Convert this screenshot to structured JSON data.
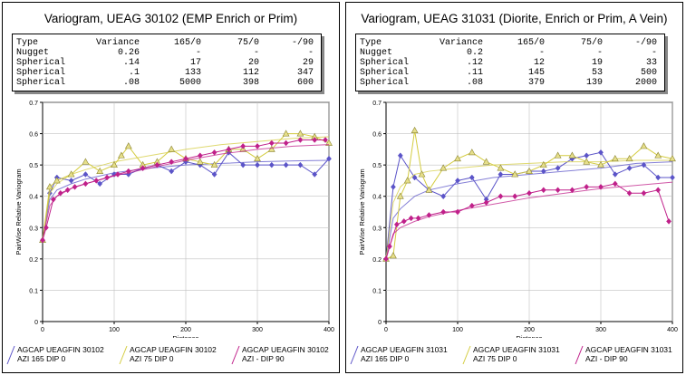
{
  "panels": [
    {
      "title": "Variogram, UEAG 30102 (EMP Enrich or Prim)",
      "table": {
        "header": [
          "Type",
          "Variance",
          "165/0",
          "75/0",
          "-/90"
        ],
        "rows": [
          [
            "Nugget",
            "0.26",
            "-",
            "-",
            "-"
          ],
          [
            "Spherical",
            ".14",
            "17",
            "20",
            "29"
          ],
          [
            "Spherical",
            ".1",
            "133",
            "112",
            "347"
          ],
          [
            "Spherical",
            ".08",
            "5000",
            "398",
            "600"
          ]
        ]
      },
      "legend": [
        {
          "line1": "AGCAP UEAGFIN 30102",
          "line2": "AZI 165 DIP 0",
          "color": "#5b54c8"
        },
        {
          "line1": "AGCAP UEAGFIN 30102",
          "line2": "AZI 75 DIP 0",
          "color": "#d4cc40"
        },
        {
          "line1": "AGCAP UEAGFIN 30102",
          "line2": "AZI - DIP 90",
          "color": "#c0208a"
        }
      ]
    },
    {
      "title": "Variogram, UEAG 31031 (Diorite, Enrich or Prim, A Vein)",
      "table": {
        "header": [
          "Type",
          "Variance",
          "165/0",
          "75/0",
          "-/90"
        ],
        "rows": [
          [
            "Nugget",
            "0.2",
            "-",
            "-",
            "-"
          ],
          [
            "Spherical",
            ".12",
            "12",
            "19",
            "33"
          ],
          [
            "Spherical",
            ".11",
            "145",
            "53",
            "500"
          ],
          [
            "Spherical",
            ".08",
            "379",
            "139",
            "2000"
          ]
        ]
      },
      "legend": [
        {
          "line1": "AGCAP UEAGFIN 31031",
          "line2": "AZI 165 DIP 0",
          "color": "#5b54c8"
        },
        {
          "line1": "AGCAP UEAGFIN 31031",
          "line2": "AZI 75 DIP 0",
          "color": "#d4cc40"
        },
        {
          "line1": "AGCAP UEAGFIN 31031",
          "line2": "AZI - DIP 90",
          "color": "#c0208a"
        }
      ]
    }
  ],
  "chart_data": [
    {
      "type": "line",
      "xlabel": "Distance",
      "ylabel": "PairWise Relative Variogram",
      "xlim": [
        0,
        400
      ],
      "ylim": [
        0,
        0.7
      ],
      "xticks": [
        0,
        100,
        200,
        300,
        400
      ],
      "yticks": [
        0,
        0.1,
        0.2,
        0.3,
        0.4,
        0.5,
        0.6,
        0.7
      ],
      "ytick_labels": [
        "0",
        "0.1",
        "0.2",
        "0.3",
        "0.4",
        "0.5",
        "0.6",
        "0.7"
      ],
      "grid": true,
      "series": [
        {
          "name": "AGCAP UEAGFIN 30102 AZI 165 DIP 0",
          "color": "#5b54c8",
          "marker": "diamond",
          "x": [
            0,
            10,
            20,
            40,
            60,
            80,
            100,
            120,
            140,
            160,
            180,
            200,
            220,
            240,
            260,
            280,
            300,
            320,
            340,
            360,
            380,
            400
          ],
          "y": [
            0.26,
            0.41,
            0.46,
            0.45,
            0.47,
            0.44,
            0.47,
            0.47,
            0.49,
            0.5,
            0.48,
            0.51,
            0.5,
            0.47,
            0.54,
            0.5,
            0.5,
            0.5,
            0.5,
            0.5,
            0.47,
            0.52
          ],
          "model_x": [
            0,
            10,
            20,
            40,
            60,
            100,
            150,
            200,
            250,
            300,
            350,
            400
          ],
          "model_y": [
            0.26,
            0.39,
            0.42,
            0.44,
            0.455,
            0.475,
            0.49,
            0.5,
            0.505,
            0.51,
            0.513,
            0.515
          ]
        },
        {
          "name": "AGCAP UEAGFIN 30102 AZI 75 DIP 0",
          "color": "#d4cc40",
          "marker": "triangle",
          "x": [
            0,
            10,
            20,
            40,
            60,
            80,
            100,
            110,
            120,
            140,
            160,
            180,
            200,
            220,
            240,
            260,
            280,
            300,
            320,
            340,
            360,
            380,
            400
          ],
          "y": [
            0.26,
            0.43,
            0.45,
            0.47,
            0.51,
            0.48,
            0.5,
            0.53,
            0.56,
            0.5,
            0.51,
            0.55,
            0.52,
            0.51,
            0.5,
            0.55,
            0.55,
            0.52,
            0.55,
            0.6,
            0.6,
            0.59,
            0.57
          ],
          "model_x": [
            0,
            10,
            20,
            40,
            60,
            100,
            150,
            200,
            250,
            300,
            350,
            400
          ],
          "model_y": [
            0.26,
            0.41,
            0.44,
            0.47,
            0.485,
            0.51,
            0.53,
            0.55,
            0.565,
            0.575,
            0.585,
            0.59
          ]
        },
        {
          "name": "AGCAP UEAGFIN 30102 AZI - DIP 90",
          "color": "#c0208a",
          "marker": "diamond",
          "x": [
            0,
            5,
            15,
            25,
            35,
            45,
            60,
            75,
            90,
            105,
            120,
            140,
            160,
            180,
            200,
            220,
            240,
            260,
            280,
            300,
            320,
            340,
            360,
            380,
            395
          ],
          "y": [
            0.26,
            0.3,
            0.39,
            0.41,
            0.42,
            0.43,
            0.44,
            0.45,
            0.46,
            0.47,
            0.48,
            0.49,
            0.5,
            0.51,
            0.52,
            0.53,
            0.54,
            0.55,
            0.56,
            0.56,
            0.57,
            0.57,
            0.58,
            0.58,
            0.58
          ],
          "model_x": [
            0,
            10,
            20,
            40,
            60,
            100,
            150,
            200,
            250,
            300,
            350,
            400
          ],
          "model_y": [
            0.26,
            0.37,
            0.4,
            0.425,
            0.44,
            0.465,
            0.49,
            0.515,
            0.535,
            0.55,
            0.56,
            0.565
          ]
        }
      ]
    },
    {
      "type": "line",
      "xlabel": "Distance",
      "ylabel": "PairWise Relative Variogram",
      "xlim": [
        0,
        400
      ],
      "ylim": [
        0,
        0.7
      ],
      "xticks": [
        0,
        100,
        200,
        300,
        400
      ],
      "yticks": [
        0,
        0.1,
        0.2,
        0.3,
        0.4,
        0.5,
        0.6,
        0.7
      ],
      "ytick_labels": [
        "0",
        "0.1",
        "0.2",
        "0.3",
        "0.4",
        "0.5",
        "0.6",
        "0.7"
      ],
      "grid": true,
      "series": [
        {
          "name": "AGCAP UEAGFIN 31031 AZI 165 DIP 0",
          "color": "#5b54c8",
          "marker": "diamond",
          "x": [
            0,
            10,
            20,
            40,
            60,
            80,
            100,
            120,
            140,
            160,
            180,
            200,
            220,
            240,
            260,
            280,
            300,
            320,
            340,
            360,
            380,
            400
          ],
          "y": [
            0.2,
            0.43,
            0.53,
            0.46,
            0.42,
            0.4,
            0.45,
            0.46,
            0.39,
            0.47,
            0.47,
            0.48,
            0.48,
            0.49,
            0.52,
            0.53,
            0.54,
            0.47,
            0.49,
            0.5,
            0.46,
            0.46
          ],
          "model_x": [
            0,
            10,
            20,
            40,
            60,
            100,
            150,
            200,
            250,
            300,
            350,
            400
          ],
          "model_y": [
            0.2,
            0.33,
            0.36,
            0.4,
            0.42,
            0.44,
            0.46,
            0.47,
            0.48,
            0.49,
            0.505,
            0.51
          ]
        },
        {
          "name": "AGCAP UEAGFIN 31031 AZI 75 DIP 0",
          "color": "#d4cc40",
          "marker": "triangle",
          "x": [
            0,
            10,
            20,
            30,
            40,
            50,
            60,
            80,
            100,
            120,
            140,
            160,
            180,
            200,
            220,
            240,
            260,
            280,
            300,
            320,
            340,
            360,
            380,
            400
          ],
          "y": [
            0.2,
            0.21,
            0.4,
            0.45,
            0.61,
            0.47,
            0.42,
            0.49,
            0.52,
            0.54,
            0.51,
            0.49,
            0.47,
            0.48,
            0.5,
            0.53,
            0.53,
            0.51,
            0.5,
            0.52,
            0.52,
            0.56,
            0.53,
            0.52
          ],
          "model_x": [
            0,
            10,
            20,
            40,
            60,
            100,
            150,
            200,
            250,
            300,
            350,
            400
          ],
          "model_y": [
            0.2,
            0.38,
            0.43,
            0.47,
            0.48,
            0.49,
            0.5,
            0.505,
            0.51,
            0.51,
            0.515,
            0.515
          ]
        },
        {
          "name": "AGCAP UEAGFIN 31031 AZI - DIP 90",
          "color": "#c0208a",
          "marker": "diamond",
          "x": [
            0,
            5,
            15,
            25,
            35,
            45,
            60,
            80,
            100,
            120,
            140,
            160,
            180,
            200,
            220,
            240,
            260,
            280,
            300,
            320,
            340,
            360,
            380,
            395
          ],
          "y": [
            0.2,
            0.24,
            0.31,
            0.32,
            0.33,
            0.33,
            0.34,
            0.35,
            0.35,
            0.37,
            0.38,
            0.4,
            0.4,
            0.41,
            0.42,
            0.42,
            0.42,
            0.43,
            0.43,
            0.44,
            0.41,
            0.41,
            0.42,
            0.32
          ],
          "model_x": [
            0,
            10,
            20,
            40,
            60,
            100,
            150,
            200,
            250,
            300,
            350,
            400
          ],
          "model_y": [
            0.2,
            0.28,
            0.3,
            0.32,
            0.335,
            0.355,
            0.375,
            0.395,
            0.41,
            0.425,
            0.435,
            0.445
          ]
        }
      ]
    }
  ]
}
